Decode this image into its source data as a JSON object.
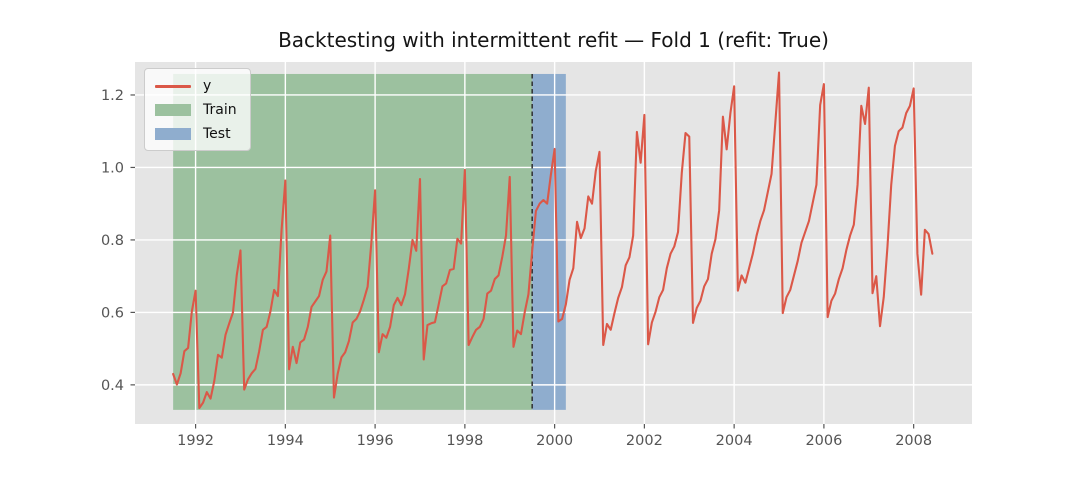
{
  "figure": {
    "title": "Backtesting with intermittent refit — Fold 1 (refit: True)"
  },
  "chart_data": {
    "type": "line",
    "title": "Backtesting with intermittent refit — Fold 1 (refit: True)",
    "xlabel": "",
    "ylabel": "",
    "grid": true,
    "plot_background": "#e5e5e5",
    "grid_color": "#ffffff",
    "tick_color": "#555555",
    "x_axis": {
      "range": [
        1990.65,
        2009.3
      ],
      "tick_values": [
        1992,
        1994,
        1996,
        1998,
        2000,
        2002,
        2004,
        2006,
        2008
      ],
      "tick_labels": [
        "1992",
        "1994",
        "1996",
        "1998",
        "2000",
        "2002",
        "2004",
        "2006",
        "2008"
      ]
    },
    "y_axis": {
      "range": [
        0.292,
        1.291
      ],
      "tick_values": [
        0.4,
        0.6,
        0.8,
        1.0,
        1.2
      ],
      "tick_labels": [
        "0.4",
        "0.6",
        "0.8",
        "1.0",
        "1.2"
      ]
    },
    "series": [
      {
        "name": "y",
        "color": "#db5848",
        "linewidth": 2.1,
        "start_year": 1991,
        "start_month": 7,
        "frequency": "monthly",
        "values": [
          0.43,
          0.401,
          0.432,
          0.493,
          0.502,
          0.603,
          0.66,
          0.336,
          0.351,
          0.38,
          0.362,
          0.411,
          0.483,
          0.475,
          0.538,
          0.57,
          0.6,
          0.702,
          0.771,
          0.387,
          0.415,
          0.432,
          0.444,
          0.493,
          0.552,
          0.56,
          0.602,
          0.662,
          0.645,
          0.829,
          0.964,
          0.443,
          0.505,
          0.46,
          0.517,
          0.525,
          0.56,
          0.615,
          0.63,
          0.645,
          0.69,
          0.713,
          0.812,
          0.365,
          0.431,
          0.476,
          0.49,
          0.521,
          0.572,
          0.582,
          0.603,
          0.635,
          0.671,
          0.792,
          0.937,
          0.49,
          0.54,
          0.53,
          0.56,
          0.62,
          0.64,
          0.62,
          0.65,
          0.72,
          0.8,
          0.77,
          0.968,
          0.47,
          0.565,
          0.57,
          0.573,
          0.622,
          0.672,
          0.68,
          0.717,
          0.72,
          0.803,
          0.79,
          0.993,
          0.51,
          0.532,
          0.552,
          0.56,
          0.582,
          0.652,
          0.66,
          0.692,
          0.702,
          0.753,
          0.812,
          0.974,
          0.505,
          0.55,
          0.54,
          0.6,
          0.65,
          0.77,
          0.88,
          0.9,
          0.91,
          0.9,
          0.98,
          1.051,
          0.575,
          0.582,
          0.622,
          0.69,
          0.722,
          0.85,
          0.805,
          0.832,
          0.92,
          0.9,
          0.99,
          1.043,
          0.51,
          0.568,
          0.552,
          0.598,
          0.64,
          0.67,
          0.73,
          0.752,
          0.812,
          1.098,
          1.013,
          1.145,
          0.512,
          0.572,
          0.602,
          0.642,
          0.662,
          0.722,
          0.762,
          0.782,
          0.822,
          0.985,
          1.095,
          1.085,
          0.571,
          0.612,
          0.632,
          0.672,
          0.692,
          0.762,
          0.802,
          0.882,
          1.14,
          1.05,
          1.15,
          1.224,
          0.66,
          0.702,
          0.682,
          0.722,
          0.762,
          0.812,
          0.852,
          0.882,
          0.932,
          0.982,
          1.122,
          1.262,
          0.598,
          0.642,
          0.662,
          0.702,
          0.742,
          0.792,
          0.822,
          0.852,
          0.902,
          0.952,
          1.172,
          1.23,
          0.587,
          0.632,
          0.652,
          0.692,
          0.722,
          0.772,
          0.812,
          0.842,
          0.952,
          1.17,
          1.12,
          1.22,
          0.653,
          0.7,
          0.562,
          0.642,
          0.782,
          0.952,
          1.06,
          1.1,
          1.11,
          1.15,
          1.17,
          1.218,
          0.762,
          0.649,
          0.828,
          0.816,
          0.762
        ]
      }
    ],
    "regions": [
      {
        "name": "Train",
        "color": "#9cc19f",
        "x_start": 1991.5,
        "x_end": 1999.5,
        "y_min": 0.331,
        "y_max": 1.258
      },
      {
        "name": "Test",
        "color": "#8fadce",
        "x_start": 1999.5,
        "x_end": 2000.25,
        "y_min": 0.331,
        "y_max": 1.258
      }
    ],
    "vline": {
      "x": 1999.5,
      "style": "dashed",
      "color": "#34383b",
      "y_min": 0.331,
      "y_max": 1.258
    },
    "legend": {
      "position": "upper left",
      "items": [
        {
          "label": "y",
          "type": "line",
          "color": "#db5848"
        },
        {
          "label": "Train",
          "type": "patch",
          "color": "#9cc19f"
        },
        {
          "label": "Test",
          "type": "patch",
          "color": "#8fadce"
        }
      ]
    }
  }
}
